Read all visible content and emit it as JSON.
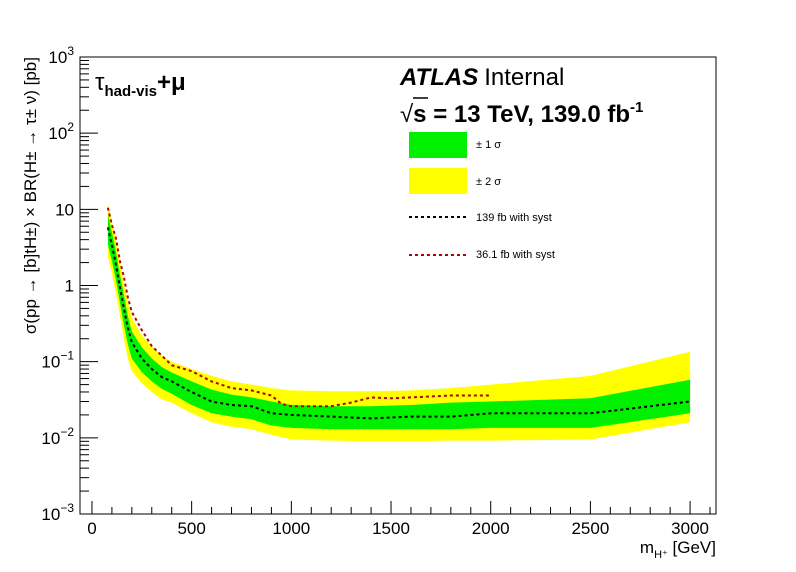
{
  "chart_data": {
    "type": "line",
    "xlabel_main": "m",
    "xlabel_sub": "H⁺",
    "xlabel_unit": " [GeV]",
    "ylabel": "σ(pp → [b]tH±) × BR(H± → τ± ν) [pb]",
    "xlim": [
      -60,
      3130
    ],
    "ylim_log10": [
      -3,
      3
    ],
    "yscale": "log",
    "x_ticks": [
      0,
      500,
      1000,
      1500,
      2000,
      2500,
      3000
    ],
    "y_ticks": [
      {
        "exp": -3,
        "label_base": "10",
        "label_exp": "−3"
      },
      {
        "exp": -2,
        "label_base": "10",
        "label_exp": "−2"
      },
      {
        "exp": -1,
        "label_base": "10",
        "label_exp": "−1"
      },
      {
        "exp": 0,
        "label_base": "1",
        "label_exp": ""
      },
      {
        "exp": 1,
        "label_base": "10",
        "label_exp": ""
      },
      {
        "exp": 2,
        "label_base": "10",
        "label_exp": "2"
      },
      {
        "exp": 3,
        "label_base": "10",
        "label_exp": "3"
      }
    ],
    "bands": {
      "x": [
        80,
        100,
        120,
        140,
        160,
        180,
        200,
        250,
        300,
        350,
        400,
        500,
        600,
        700,
        800,
        900,
        1000,
        1200,
        1400,
        1600,
        1800,
        2000,
        2500,
        3000
      ],
      "minus2": [
        2.4,
        1.45,
        0.8,
        0.4,
        0.2,
        0.11,
        0.075,
        0.052,
        0.04,
        0.032,
        0.029,
        0.021,
        0.016,
        0.014,
        0.013,
        0.011,
        0.0095,
        0.0092,
        0.009,
        0.009,
        0.0092,
        0.0092,
        0.0095,
        0.016
      ],
      "minus1": [
        3.5,
        2.1,
        1.2,
        0.6,
        0.3,
        0.17,
        0.11,
        0.073,
        0.055,
        0.044,
        0.038,
        0.027,
        0.021,
        0.019,
        0.0175,
        0.0145,
        0.0135,
        0.013,
        0.013,
        0.013,
        0.013,
        0.0135,
        0.0135,
        0.021
      ],
      "plus1": [
        8.5,
        5.0,
        2.8,
        1.4,
        0.75,
        0.4,
        0.25,
        0.155,
        0.11,
        0.085,
        0.072,
        0.055,
        0.043,
        0.037,
        0.034,
        0.03,
        0.027,
        0.026,
        0.026,
        0.027,
        0.029,
        0.03,
        0.033,
        0.058
      ],
      "plus2": [
        12,
        7.0,
        4.0,
        2.0,
        1.05,
        0.6,
        0.38,
        0.22,
        0.16,
        0.12,
        0.1,
        0.08,
        0.065,
        0.055,
        0.05,
        0.045,
        0.042,
        0.041,
        0.041,
        0.042,
        0.045,
        0.05,
        0.065,
        0.135
      ]
    },
    "series": [
      {
        "name": "139 fb with syst",
        "color": "#000000",
        "x": [
          80,
          100,
          120,
          140,
          160,
          180,
          200,
          250,
          300,
          350,
          400,
          500,
          600,
          700,
          800,
          900,
          1000,
          1200,
          1400,
          1600,
          1800,
          2000,
          2500,
          3000
        ],
        "y": [
          5.8,
          3.4,
          1.9,
          0.95,
          0.5,
          0.28,
          0.18,
          0.11,
          0.08,
          0.063,
          0.055,
          0.04,
          0.03,
          0.027,
          0.026,
          0.021,
          0.02,
          0.019,
          0.018,
          0.019,
          0.019,
          0.021,
          0.021,
          0.03
        ]
      },
      {
        "name": "36.1 fb with syst",
        "color": "#b40000",
        "x": [
          80,
          100,
          120,
          140,
          160,
          180,
          200,
          250,
          300,
          350,
          400,
          500,
          600,
          700,
          800,
          900,
          950,
          1000,
          1100,
          1200,
          1300,
          1400,
          1500,
          1600,
          1800,
          2000
        ],
        "y": [
          10.5,
          6.2,
          4.2,
          2.1,
          1.3,
          0.7,
          0.45,
          0.26,
          0.16,
          0.12,
          0.09,
          0.075,
          0.055,
          0.045,
          0.042,
          0.036,
          0.028,
          0.026,
          0.026,
          0.026,
          0.029,
          0.034,
          0.033,
          0.034,
          0.036,
          0.036
        ]
      }
    ],
    "legend": {
      "placement": "top-center",
      "band1": "± 1 σ",
      "band2": "± 2 σ",
      "line1": "139 fb with syst",
      "line2": "36.1 fb with syst"
    },
    "colors": {
      "band1": "#00f000",
      "band2": "#ffff00",
      "line1": "#000000",
      "line2": "#b40000"
    },
    "annotations": {
      "atlas": "ATLAS",
      "internal": "Internal",
      "sqrt": "√",
      "energy_main": "s = 13 TeV, 139.0 fb",
      "energy_exp": "-1",
      "channel_tau": "τ",
      "channel_sub": "had-vis",
      "channel_rest": "+μ"
    }
  }
}
